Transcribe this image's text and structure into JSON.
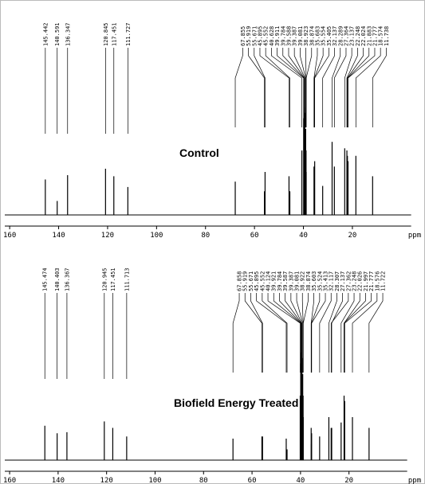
{
  "chart_data": [
    {
      "type": "spectrum",
      "title": "Control",
      "x_label": "ppm",
      "color": "#000000",
      "x": [
        145.442,
        140.591,
        136.347,
        120.845,
        117.451,
        111.727,
        67.855,
        55.919,
        55.671,
        45.895,
        45.552,
        40.628,
        39.911,
        39.784,
        39.588,
        39.387,
        39.081,
        38.923,
        38.874,
        35.683,
        35.554,
        35.405,
        32.137,
        28.289,
        27.364,
        23.137,
        22.248,
        22.024,
        21.883,
        21.777,
        18.574,
        11.738
      ],
      "values": [
        33,
        13,
        37,
        43,
        36,
        26,
        31,
        22,
        40,
        36,
        22,
        60,
        90,
        100,
        100,
        95,
        80,
        60,
        40,
        45,
        25,
        50,
        27,
        68,
        45,
        62,
        60,
        55,
        40,
        50,
        55,
        36
      ],
      "xlim": [
        162,
        -4
      ],
      "ylim": [
        0,
        100
      ],
      "xticks": [
        160,
        140,
        120,
        100,
        80,
        60,
        40,
        20
      ]
    },
    {
      "type": "spectrum",
      "title": "Biofield Energy Treated",
      "x_label": "ppm",
      "color": "#000000",
      "x": [
        145.474,
        140.403,
        136.367,
        120.945,
        117.451,
        111.713,
        67.858,
        55.919,
        55.671,
        45.895,
        45.552,
        40.124,
        39.921,
        39.784,
        39.587,
        39.387,
        39.081,
        38.922,
        38.874,
        35.603,
        35.524,
        35.413,
        32.117,
        28.307,
        27.137,
        27.362,
        23.248,
        22.026,
        21.997,
        21.777,
        18.576,
        11.722
      ],
      "values": [
        32,
        25,
        26,
        36,
        30,
        22,
        20,
        22,
        22,
        20,
        10,
        60,
        90,
        100,
        100,
        95,
        80,
        60,
        40,
        30,
        15,
        25,
        22,
        40,
        30,
        30,
        35,
        60,
        40,
        55,
        40,
        30
      ],
      "xlim": [
        162,
        -4
      ],
      "ylim": [
        0,
        100
      ],
      "xticks": [
        160,
        140,
        120,
        100,
        80,
        60,
        40,
        20
      ]
    }
  ]
}
